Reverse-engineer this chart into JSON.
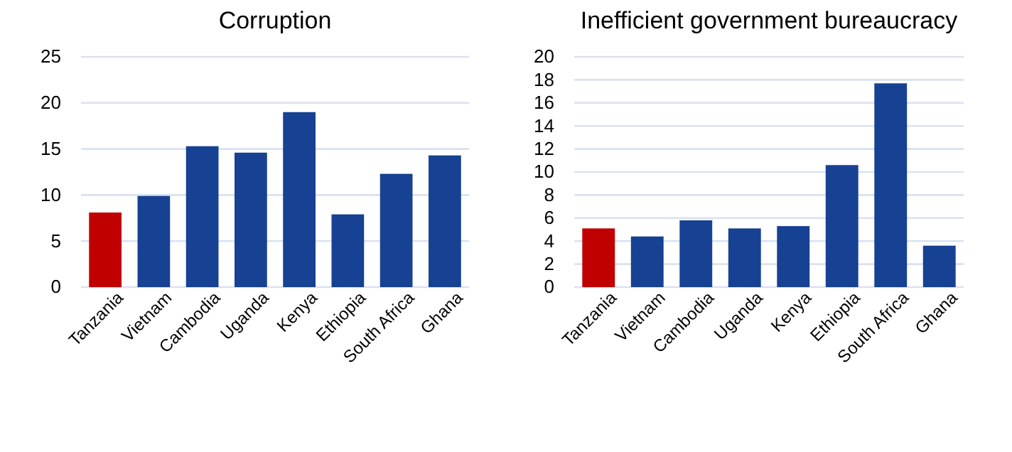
{
  "chart_data": [
    {
      "type": "bar",
      "title": "Corruption",
      "categories": [
        "Tanzania",
        "Vietnam",
        "Cambodia",
        "Uganda",
        "Kenya",
        "Ethiopia",
        "South Africa",
        "Ghana"
      ],
      "values": [
        8.1,
        9.9,
        15.3,
        14.6,
        19.0,
        7.9,
        12.3,
        14.3
      ],
      "colors": [
        "#c00000",
        "#174192",
        "#174192",
        "#174192",
        "#174192",
        "#174192",
        "#174192",
        "#174192"
      ],
      "ylim": [
        0,
        25
      ],
      "yticks": [
        0,
        5,
        10,
        15,
        20,
        25
      ],
      "grid": "y"
    },
    {
      "type": "bar",
      "title": "Inefficient government bureaucracy",
      "categories": [
        "Tanzania",
        "Vietnam",
        "Cambodia",
        "Uganda",
        "Kenya",
        "Ethiopia",
        "South Africa",
        "Ghana"
      ],
      "values": [
        5.1,
        4.4,
        5.8,
        5.1,
        5.3,
        10.6,
        17.7,
        3.6
      ],
      "colors": [
        "#c00000",
        "#174192",
        "#174192",
        "#174192",
        "#174192",
        "#174192",
        "#174192",
        "#174192"
      ],
      "ylim": [
        0,
        20
      ],
      "yticks": [
        0,
        2,
        4,
        6,
        8,
        10,
        12,
        14,
        16,
        18,
        20
      ],
      "grid": "y"
    }
  ]
}
